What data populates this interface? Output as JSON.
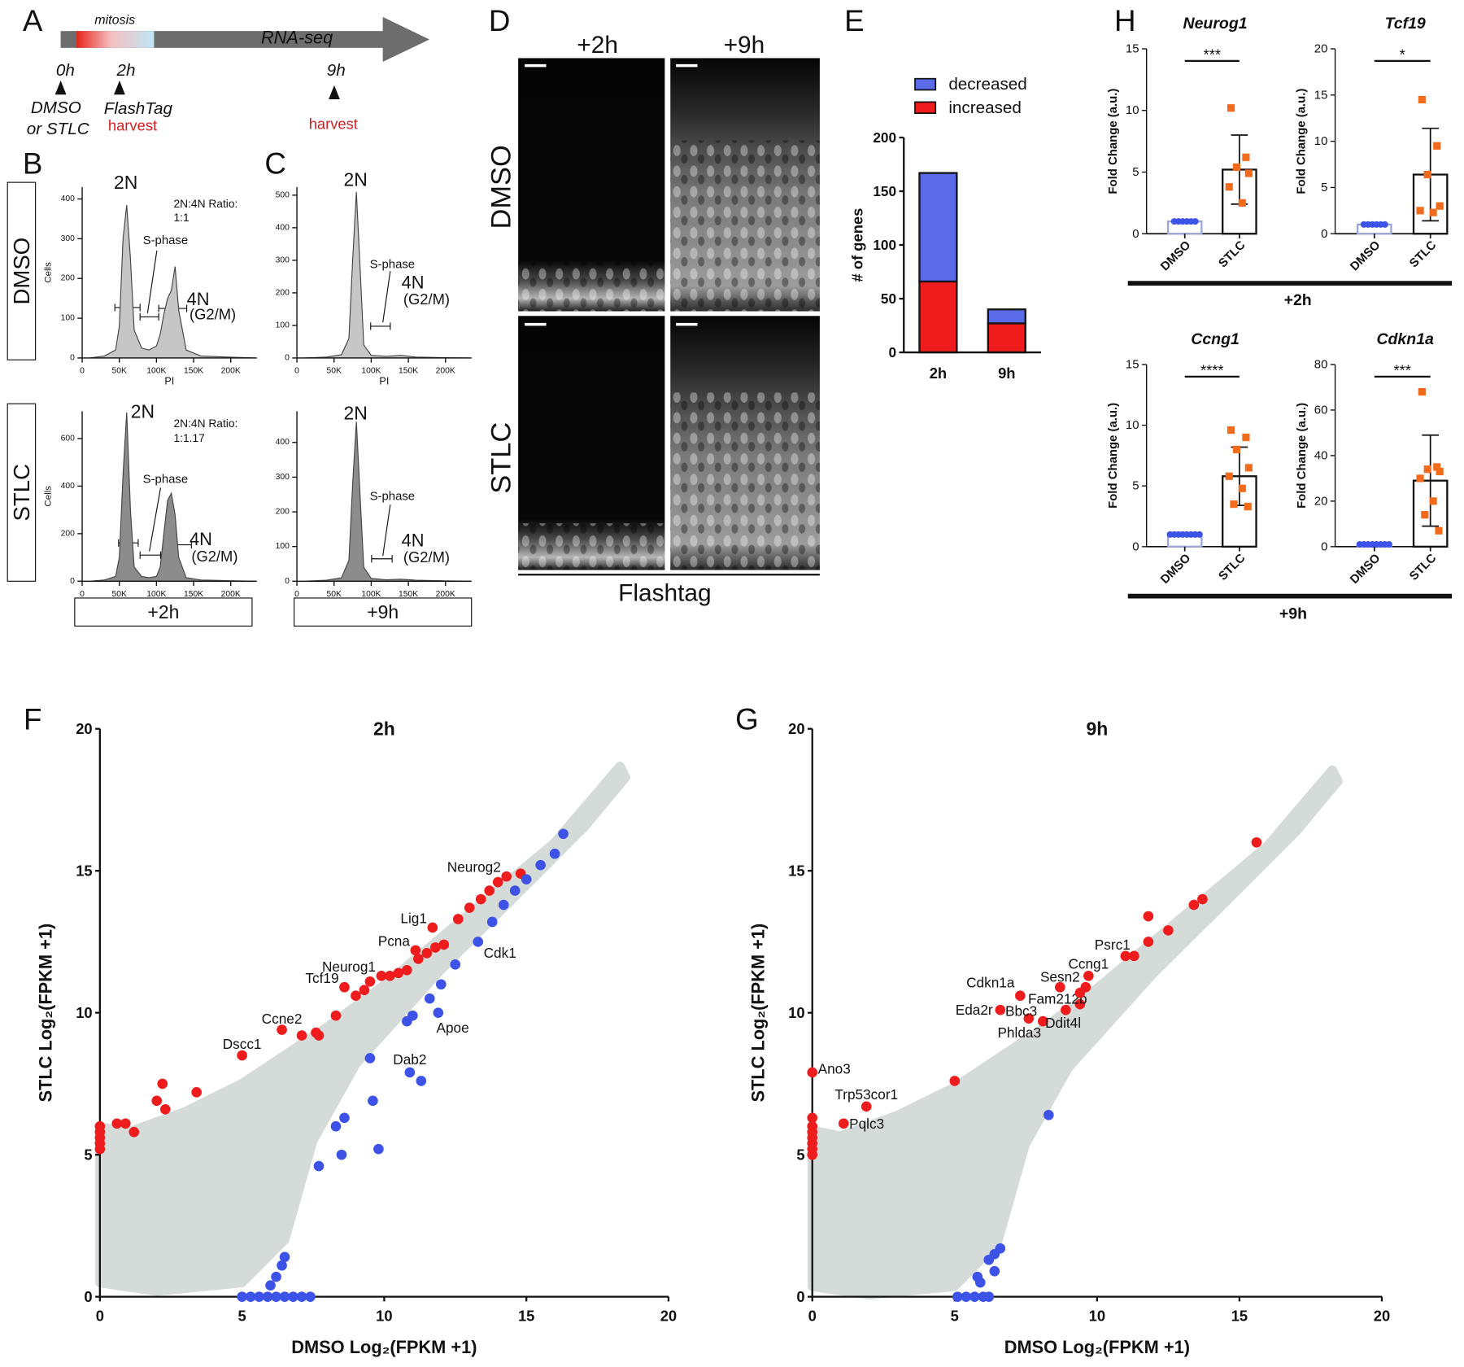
{
  "panel_labels": [
    "A",
    "B",
    "C",
    "D",
    "E",
    "F",
    "G",
    "H"
  ],
  "timeline": {
    "phase": "mitosis",
    "assay": "RNA-seq",
    "times": [
      "0h",
      "2h",
      "9h"
    ],
    "treatment": [
      "DMSO",
      "or STLC"
    ],
    "label": "FlashTag",
    "harvest": [
      "harvest",
      "harvest"
    ]
  },
  "histogram_panels": {
    "row_labels": [
      "DMSO",
      "STLC"
    ],
    "time_labels": [
      "+2h",
      "+9h"
    ]
  },
  "imaging": {
    "columns": [
      "+2h",
      "+9h"
    ],
    "rows": [
      "DMSO",
      "STLC"
    ],
    "caption": "Flashtag"
  },
  "qpcr": {
    "groups": [
      "+2h",
      "+9h"
    ]
  },
  "chart_data": [
    {
      "type": "area",
      "color": "#c6c6c6",
      "xlabel": "PI",
      "ylabel": "Cells",
      "x": [
        10000,
        30000,
        45000,
        50000,
        55000,
        60000,
        65000,
        70000,
        80000,
        90000,
        100000,
        105000,
        110000,
        115000,
        120000,
        125000,
        130000,
        140000,
        160000,
        200000,
        235000
      ],
      "values": [
        0,
        5,
        20,
        80,
        300,
        385,
        250,
        70,
        25,
        20,
        30,
        60,
        110,
        150,
        170,
        230,
        120,
        20,
        5,
        2,
        0
      ],
      "xlim": [
        0,
        235000
      ],
      "ylim": [
        0,
        430
      ],
      "xticks": [
        0,
        {
          "value": 50000,
          "label": "50K"
        },
        {
          "value": 100000,
          "label": "100K"
        },
        {
          "value": 150000,
          "label": "150K"
        },
        {
          "value": 200000,
          "label": "200K"
        }
      ],
      "yticks": [
        0,
        100,
        200,
        300,
        400
      ],
      "annotations": [
        "2N",
        "2N:4N Ratio:",
        "1:1",
        "S-phase",
        "4N",
        "(G2/M)"
      ]
    },
    {
      "type": "area",
      "color": "#8c8c8c",
      "ylabel": "Cells",
      "x": [
        10000,
        30000,
        45000,
        50000,
        55000,
        60000,
        65000,
        70000,
        80000,
        90000,
        100000,
        105000,
        110000,
        115000,
        120000,
        125000,
        130000,
        140000,
        160000,
        200000,
        235000
      ],
      "values": [
        0,
        5,
        20,
        100,
        450,
        710,
        300,
        60,
        20,
        15,
        20,
        60,
        200,
        340,
        370,
        280,
        100,
        15,
        5,
        2,
        0
      ],
      "xlim": [
        0,
        235000
      ],
      "ylim": [
        0,
        715
      ],
      "xticks": [
        0,
        {
          "value": 50000,
          "label": "50K"
        },
        {
          "value": 100000,
          "label": "100K"
        },
        {
          "value": 150000,
          "label": "150K"
        },
        {
          "value": 200000,
          "label": "200K"
        }
      ],
      "yticks": [
        0,
        200,
        400,
        600
      ],
      "annotations": [
        "2N",
        "2N:4N Ratio:",
        "1:1.17",
        "S-phase",
        "4N",
        "(G2/M)"
      ]
    },
    {
      "type": "area",
      "color": "#c6c6c6",
      "xlabel": "PI",
      "x": [
        10000,
        40000,
        60000,
        70000,
        75000,
        80000,
        85000,
        90000,
        100000,
        120000,
        140000,
        160000,
        200000,
        235000
      ],
      "values": [
        0,
        3,
        10,
        60,
        300,
        510,
        280,
        40,
        8,
        5,
        8,
        3,
        1,
        0
      ],
      "xlim": [
        0,
        235000
      ],
      "ylim": [
        0,
        525
      ],
      "xticks": [
        0,
        {
          "value": 50000,
          "label": "50K"
        },
        {
          "value": 100000,
          "label": "100K"
        },
        {
          "value": 150000,
          "label": "150K"
        },
        {
          "value": 200000,
          "label": "200K"
        }
      ],
      "yticks": [
        0,
        100,
        200,
        300,
        400,
        500
      ],
      "annotations": [
        "2N",
        "S-phase",
        "4N",
        "(G2/M)"
      ]
    },
    {
      "type": "area",
      "color": "#8c8c8c",
      "x": [
        10000,
        40000,
        60000,
        70000,
        75000,
        80000,
        85000,
        90000,
        100000,
        120000,
        140000,
        160000,
        200000,
        235000
      ],
      "values": [
        0,
        3,
        10,
        60,
        280,
        460,
        250,
        40,
        8,
        4,
        6,
        3,
        1,
        0
      ],
      "xlim": [
        0,
        235000
      ],
      "ylim": [
        0,
        490
      ],
      "xticks": [
        0,
        {
          "value": 50000,
          "label": "50K"
        },
        {
          "value": 100000,
          "label": "100K"
        },
        {
          "value": 150000,
          "label": "150K"
        },
        {
          "value": 200000,
          "label": "200K"
        }
      ],
      "yticks": [
        0,
        100,
        200,
        300,
        400
      ],
      "annotations": [
        "2N",
        "S-phase",
        "4N",
        "(G2/M)"
      ]
    },
    {
      "type": "stacked_bar",
      "ylabel": "# of genes",
      "categories": [
        "2h",
        "9h"
      ],
      "series": [
        {
          "name": "decreased",
          "color": "#5a6ae8",
          "values": [
            101,
            13
          ]
        },
        {
          "name": "increased",
          "color": "#ee1c1c",
          "values": [
            66,
            27
          ]
        }
      ],
      "ylim": [
        0,
        200
      ],
      "yticks": [
        0,
        50,
        100,
        150,
        200
      ]
    },
    {
      "type": "bar_dot",
      "title": "Neurog1",
      "ylabel": "Fold Change (a.u.)",
      "categories": [
        "DMSO",
        "STLC"
      ],
      "values": [
        1,
        5.2
      ],
      "errors": [
        0,
        2.8
      ],
      "points": [
        [
          1,
          1,
          1,
          1,
          1,
          1
        ],
        [
          10.2,
          6.2,
          5.4,
          4.9,
          3.8,
          2.5
        ]
      ],
      "colors": [
        "#3d52e6",
        "#f26b1d"
      ],
      "ylim": [
        0,
        15
      ],
      "yticks": [
        0,
        5,
        10,
        15
      ],
      "significance": "***"
    },
    {
      "type": "bar_dot",
      "title": "Tcf19",
      "ylabel": "Fold Change (a.u.)",
      "categories": [
        "DMSO",
        "STLC"
      ],
      "values": [
        1,
        6.4
      ],
      "errors": [
        0,
        5
      ],
      "points": [
        [
          1,
          1,
          1,
          1,
          1,
          1
        ],
        [
          14.5,
          9.5,
          6.4,
          3,
          2.5,
          2.3
        ]
      ],
      "colors": [
        "#3d52e6",
        "#f26b1d"
      ],
      "ylim": [
        0,
        20
      ],
      "yticks": [
        0,
        5,
        10,
        15,
        20
      ],
      "significance": "*"
    },
    {
      "type": "bar_dot",
      "title": "Ccng1",
      "ylabel": "Fold Change (a.u.)",
      "categories": [
        "DMSO",
        "STLC"
      ],
      "values": [
        1,
        5.8
      ],
      "errors": [
        0,
        2.4
      ],
      "points": [
        [
          1,
          1,
          1,
          1,
          1,
          1,
          1,
          1
        ],
        [
          9.6,
          9,
          8,
          6.5,
          5.8,
          4.8,
          3.5,
          3.3
        ]
      ],
      "colors": [
        "#3d52e6",
        "#f26b1d"
      ],
      "ylim": [
        0,
        15
      ],
      "yticks": [
        0,
        5,
        10,
        15
      ],
      "significance": "****"
    },
    {
      "type": "bar_dot",
      "title": "Cdkn1a",
      "ylabel": "Fold Change (a.u.)",
      "categories": [
        "DMSO",
        "STLC"
      ],
      "values": [
        1,
        29
      ],
      "errors": [
        0,
        20
      ],
      "points": [
        [
          1,
          1,
          1,
          1,
          1,
          1,
          1,
          1
        ],
        [
          68,
          35,
          34,
          33,
          30,
          20,
          14,
          7
        ]
      ],
      "colors": [
        "#3d52e6",
        "#f26b1d"
      ],
      "ylim": [
        0,
        80
      ],
      "yticks": [
        0,
        20,
        40,
        60,
        80
      ],
      "significance": "***"
    },
    {
      "type": "scatter",
      "title": "2h",
      "xlabel": "DMSO  Log₂(FPKM +1)",
      "ylabel": "STLC  Log₂(FPKM +1)",
      "xlim": [
        0,
        20
      ],
      "ylim": [
        0,
        20
      ],
      "xticks": [
        0,
        5,
        10,
        15,
        20
      ],
      "yticks": [
        0,
        5,
        10,
        15,
        20
      ],
      "series": [
        {
          "color": "#ee1c1c",
          "x": [
            0,
            0,
            0,
            0,
            0,
            0.6,
            0.9,
            1.2,
            2.0,
            2.2,
            2.3,
            3.4,
            5.0,
            6.4,
            7.1,
            7.6,
            7.7,
            8.3,
            8.6,
            9.0,
            9.3,
            9.9,
            9.5,
            10.2,
            10.5,
            10.8,
            11.1,
            11.2,
            11.5,
            11.7,
            11.8,
            12.1,
            12.6,
            13.0,
            13.4,
            13.7,
            14.0,
            14.3,
            14.8
          ],
          "values": [
            5.2,
            5.4,
            5.6,
            5.8,
            6.0,
            6.1,
            6.1,
            5.8,
            6.9,
            7.5,
            6.6,
            7.2,
            8.5,
            9.4,
            9.2,
            9.3,
            9.2,
            9.9,
            10.9,
            10.6,
            10.8,
            11.3,
            11.1,
            11.3,
            11.4,
            11.5,
            12.2,
            11.9,
            12.1,
            13.0,
            12.3,
            12.4,
            13.3,
            13.7,
            14.0,
            14.3,
            14.6,
            14.8,
            14.9
          ],
          "point_labels": [
            null,
            null,
            null,
            null,
            null,
            null,
            null,
            null,
            null,
            null,
            null,
            null,
            "Dscc1",
            "Ccne2",
            null,
            null,
            null,
            null,
            "Tcf19",
            null,
            null,
            "Neurog1",
            null,
            null,
            null,
            null,
            "Pcna",
            null,
            null,
            "Lig1",
            null,
            null,
            null,
            null,
            null,
            null,
            null,
            "Neurog2",
            null
          ]
        },
        {
          "color": "#3d52e6",
          "x": [
            5.0,
            5.3,
            5.6,
            5.9,
            6.2,
            6.5,
            6.8,
            7.1,
            7.4,
            6.0,
            6.2,
            6.4,
            6.5,
            7.7,
            8.5,
            9.8,
            8.6,
            9.6,
            8.3,
            10.9,
            11.3,
            9.5,
            10.8,
            11.0,
            11.9,
            11.6,
            12.0,
            12.5,
            13.3,
            13.8,
            14.2,
            14.6,
            15.0,
            15.5,
            16.0,
            16.3
          ],
          "values": [
            0,
            0,
            0,
            0,
            0,
            0,
            0,
            0,
            0,
            0.4,
            0.7,
            1.1,
            1.4,
            4.6,
            5.0,
            5.2,
            6.3,
            6.9,
            6.0,
            7.9,
            7.6,
            8.4,
            9.7,
            9.9,
            10.0,
            10.5,
            11.0,
            11.7,
            12.5,
            13.2,
            13.8,
            14.3,
            14.7,
            15.2,
            15.6,
            16.3
          ],
          "point_labels": [
            null,
            null,
            null,
            null,
            null,
            null,
            null,
            null,
            null,
            null,
            null,
            null,
            null,
            null,
            null,
            null,
            null,
            null,
            null,
            "Dab2",
            null,
            null,
            null,
            null,
            "Apoe",
            null,
            null,
            null,
            "Cdk1",
            null,
            null,
            null,
            null,
            null,
            null,
            null
          ]
        }
      ]
    },
    {
      "type": "scatter",
      "title": "9h",
      "xlabel": "DMSO  Log₂(FPKM +1)",
      "ylabel": "STLC  Log₂(FPKM +1)",
      "xlim": [
        0,
        20
      ],
      "ylim": [
        0,
        20
      ],
      "xticks": [
        0,
        5,
        10,
        15,
        20
      ],
      "yticks": [
        0,
        5,
        10,
        15,
        20
      ],
      "series": [
        {
          "color": "#ee1c1c",
          "x": [
            0,
            0,
            0,
            0,
            0,
            0,
            0,
            0,
            1.1,
            1.9,
            5.0,
            6.6,
            7.3,
            7.6,
            8.1,
            8.9,
            9.4,
            8.7,
            9.7,
            11.0,
            9.4,
            9.6,
            11.3,
            11.8,
            11.8,
            12.5,
            13.4,
            13.7,
            15.6
          ],
          "values": [
            5.0,
            5.2,
            5.4,
            5.6,
            5.8,
            6.0,
            6.3,
            7.9,
            6.1,
            6.7,
            7.6,
            10.1,
            10.6,
            9.8,
            9.7,
            10.1,
            10.3,
            10.9,
            11.3,
            12.0,
            10.7,
            10.9,
            12.0,
            12.5,
            13.4,
            12.9,
            13.8,
            14.0,
            16.0
          ],
          "point_labels": [
            null,
            null,
            null,
            null,
            null,
            null,
            null,
            "Ano3",
            "Pqlc3",
            "Trp53cor1",
            null,
            "Eda2r",
            "Cdkn1a",
            "Bbc3",
            "Phlda3",
            "Ddit4l",
            "Fam212b",
            "Sesn2",
            "Ccng1",
            "Psrc1",
            null,
            null,
            null,
            null,
            null,
            null,
            null,
            null,
            null
          ]
        },
        {
          "color": "#3d52e6",
          "x": [
            5.1,
            5.4,
            5.7,
            6.0,
            6.2,
            5.9,
            5.8,
            6.4,
            6.2,
            6.4,
            6.6,
            8.3
          ],
          "values": [
            0,
            0,
            0,
            0,
            0,
            0.5,
            0.7,
            0.9,
            1.3,
            1.5,
            1.7,
            6.4
          ]
        }
      ]
    }
  ]
}
